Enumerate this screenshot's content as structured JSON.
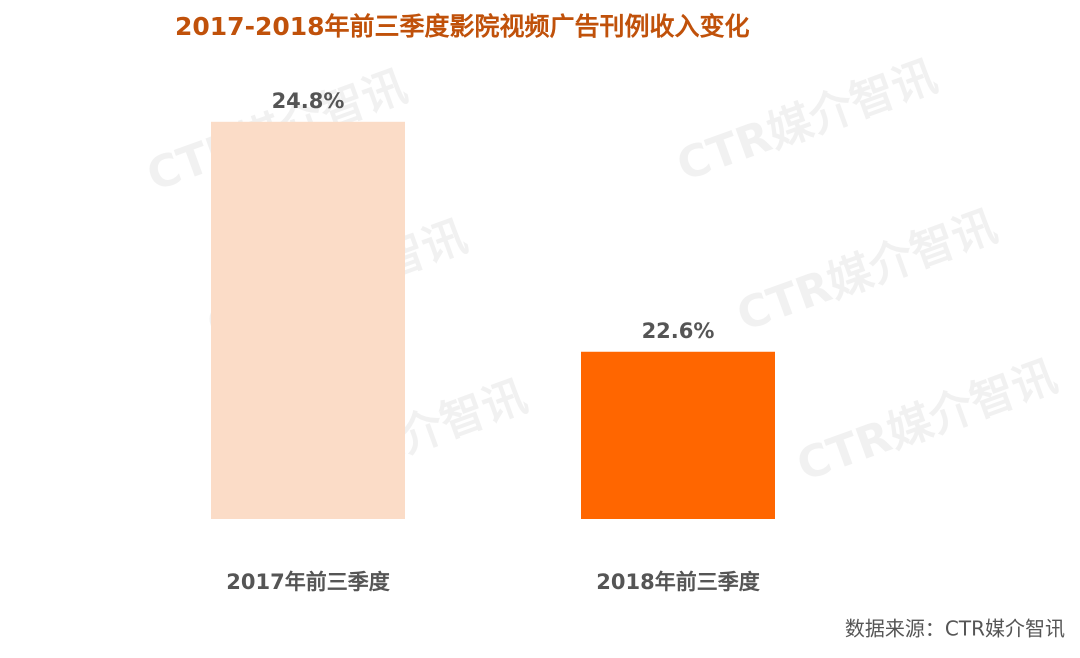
{
  "chart_data": {
    "type": "bar",
    "title": "2017-2018年前三季度影院视频广告刊例收入变化",
    "categories": [
      "2017年前三季度",
      "2018年前三季度"
    ],
    "values": [
      24.8,
      22.6
    ],
    "value_labels": [
      "24.8%",
      "22.6%"
    ],
    "colors": [
      "#fbdcc7",
      "#ff6600"
    ],
    "ylim": [
      21,
      25.2
    ],
    "source": "数据来源：CTR媒介智讯",
    "watermark": "CTR媒介智讯"
  }
}
